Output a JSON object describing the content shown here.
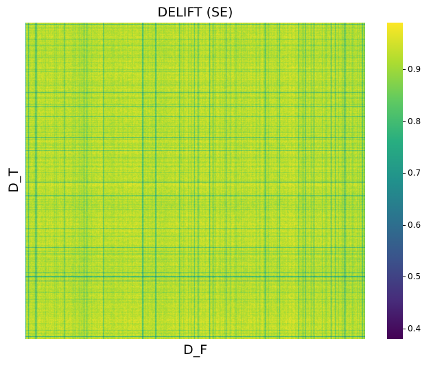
{
  "chart_data": {
    "type": "heatmap",
    "title": "DELIFT (SE)",
    "xlabel": "D_F",
    "ylabel": "D_T",
    "x_tick_labels_shown": false,
    "y_tick_labels_shown": false,
    "colormap": "viridis",
    "value_range": [
      0.38,
      0.99
    ],
    "typical_value_range": [
      0.85,
      0.97
    ],
    "colorbar": {
      "ticks": [
        {
          "value": 0.4,
          "label": "0.4"
        },
        {
          "value": 0.5,
          "label": "0.5"
        },
        {
          "value": 0.6,
          "label": "0.6"
        },
        {
          "value": 0.7,
          "label": "0.7"
        },
        {
          "value": 0.8,
          "label": "0.8"
        },
        {
          "value": 0.9,
          "label": "0.9"
        }
      ]
    }
  }
}
